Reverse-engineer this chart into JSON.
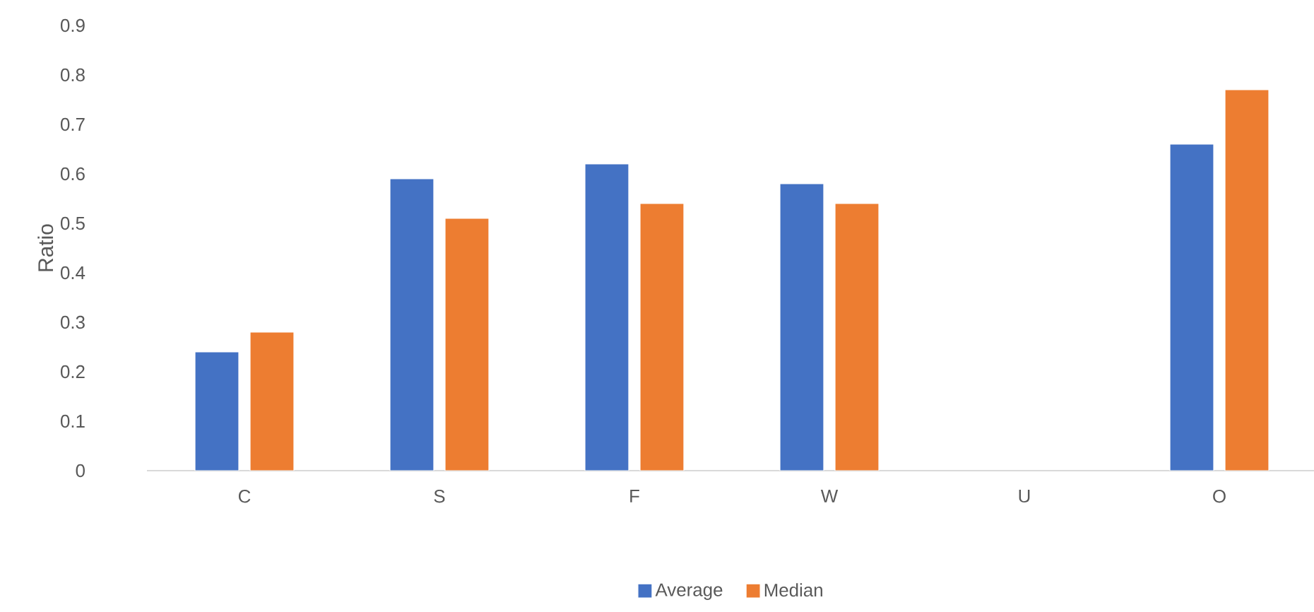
{
  "chart_data": {
    "type": "bar",
    "ylabel": "Ratio",
    "categories": [
      "C",
      "S",
      "F",
      "W",
      "U",
      "O"
    ],
    "series": [
      {
        "name": "Average",
        "color": "#4472c4",
        "values": [
          0.24,
          0.59,
          0.62,
          0.58,
          null,
          0.66
        ]
      },
      {
        "name": "Median",
        "color": "#ed7d31",
        "values": [
          0.28,
          0.51,
          0.54,
          0.54,
          null,
          0.77
        ]
      }
    ],
    "ylim": [
      0,
      0.9
    ],
    "yticks": [
      0,
      0.1,
      0.2,
      0.3,
      0.4,
      0.5,
      0.6,
      0.7,
      0.8,
      0.9
    ],
    "grid": false,
    "legend": "bottom"
  }
}
